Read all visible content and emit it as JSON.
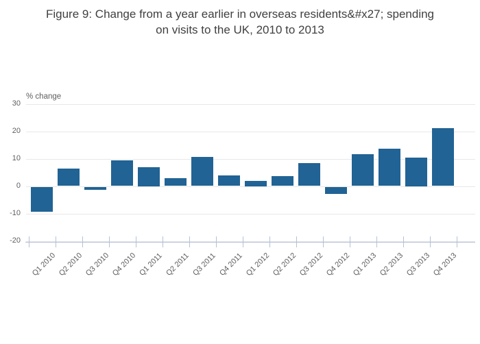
{
  "title": {
    "line1": "Figure 9: Change from a year earlier in overseas residents&#x27; spending",
    "line2": "on visits to the UK, 2010 to 2013"
  },
  "chart_data": {
    "type": "bar",
    "title": "Figure 9: Change from a year earlier in overseas residents&#x27; spending on visits to the UK, 2010 to 2013",
    "ylabel": "% change",
    "xlabel": "",
    "categories": [
      "Q1 2010",
      "Q2 2010",
      "Q3 2010",
      "Q4 2010",
      "Q1 2011",
      "Q2 2011",
      "Q3 2011",
      "Q4 2011",
      "Q1 2012",
      "Q2 2012",
      "Q3 2012",
      "Q4 2012",
      "Q1 2013",
      "Q2 2013",
      "Q3 2013",
      "Q4 2013"
    ],
    "values": [
      -9.2,
      6.3,
      -1.1,
      9.3,
      7.0,
      2.9,
      10.6,
      3.9,
      2.0,
      3.6,
      8.3,
      -2.6,
      11.6,
      13.6,
      10.5,
      21.2
    ],
    "ylim": [
      -20,
      30
    ],
    "yticks": [
      30,
      20,
      10,
      0,
      -10,
      -20
    ],
    "grid": true,
    "legend": "none",
    "colors": {
      "bar": "#216394",
      "grid": "#e7e7e7",
      "axis": "#b4c0d9",
      "tick_label": "#5e5e5e",
      "title": "#404040"
    }
  }
}
